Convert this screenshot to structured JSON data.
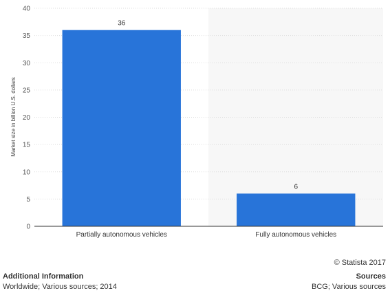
{
  "chart_data": {
    "type": "bar",
    "categories": [
      "Partially autonomous vehicles",
      "Fully autonomous vehicles"
    ],
    "values": [
      36,
      6
    ],
    "data_labels": [
      "36",
      "6"
    ],
    "title": "",
    "xlabel": "",
    "ylabel": "Market size in billion U.S. dollars",
    "ylim": [
      0,
      40
    ],
    "yticks": [
      "0",
      "5",
      "10",
      "15",
      "20",
      "25",
      "30",
      "35",
      "40"
    ],
    "grid": true,
    "bar_color": "#2874d9"
  },
  "footer": {
    "copyright": "© Statista 2017",
    "additional_info_title": "Additional Information",
    "additional_info_text": "Worldwide; Various sources; 2014",
    "sources_title": "Sources",
    "sources_text": "BCG; Various sources"
  }
}
